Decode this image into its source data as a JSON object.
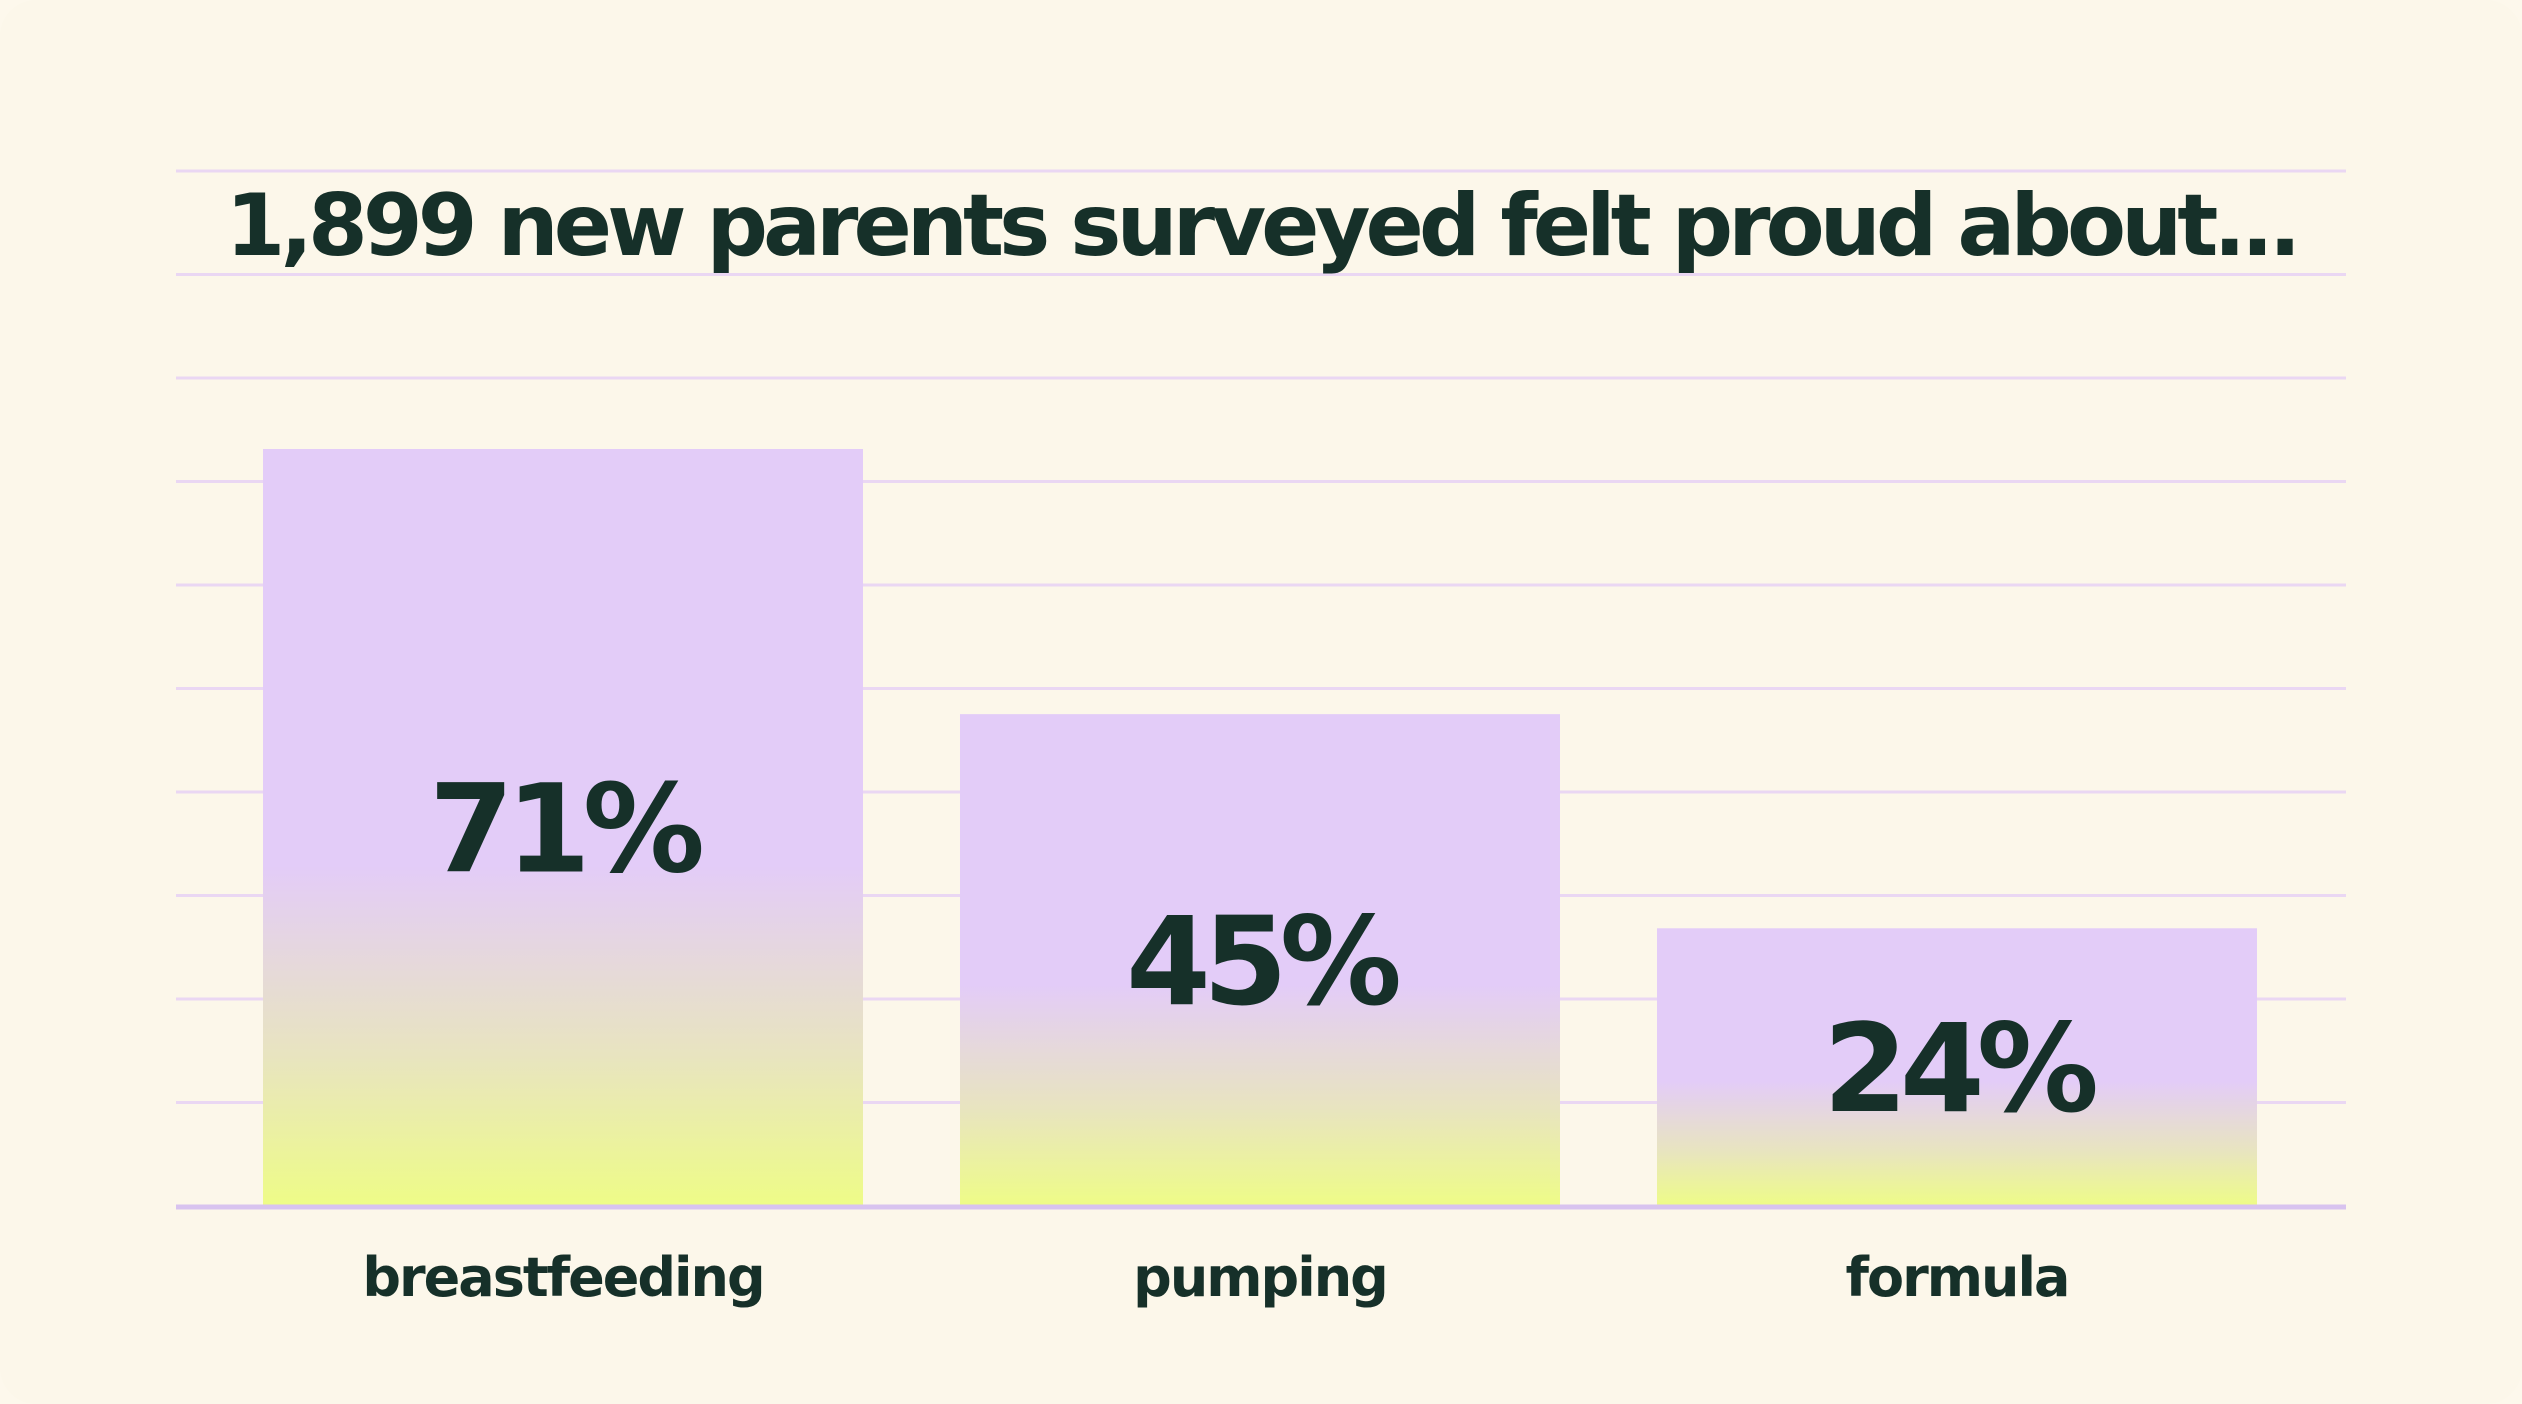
{
  "chart_data": {
    "type": "bar",
    "title": "1,899 new parents surveyed felt proud about...",
    "categories": [
      "breastfeeding",
      "pumping",
      "formula"
    ],
    "values": [
      71,
      45,
      24
    ],
    "value_labels": [
      "71%",
      "45%",
      "24%"
    ],
    "xlabel": "",
    "ylabel": "",
    "ylim": [
      0,
      100
    ],
    "grid": true,
    "legend": "none"
  },
  "colors": {
    "background": "#fcf7ea",
    "text": "#163029",
    "gridline": "#ead7f3",
    "axis": "#d8c3ef",
    "bar_top": "#e3ccf8",
    "bar_bottom": "#eefc87"
  }
}
